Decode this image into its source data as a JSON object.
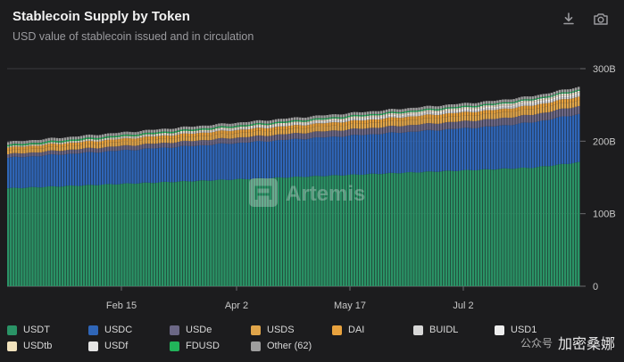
{
  "header": {
    "title": "Stablecoin Supply by Token",
    "subtitle": "USD value of stablecoin issued and in circulation"
  },
  "toolbar": {
    "download_icon": "download-icon",
    "snapshot_icon": "camera-icon"
  },
  "watermark": {
    "logo_text": "Artemis",
    "wechat_text": "公众号",
    "account_text": "加密桑娜"
  },
  "chart_data": {
    "type": "bar",
    "stacked": true,
    "x_ticks": [
      "Feb 15",
      "Apr 2",
      "May 17",
      "Jul 2"
    ],
    "y_ticks": [
      "0",
      "100B",
      "200B",
      "300B"
    ],
    "ylim": [
      0,
      300
    ],
    "grid": true,
    "legend_position": "bottom",
    "series": [
      {
        "name": "USDT",
        "color": "#2a9366",
        "start": 135,
        "end": 166
      },
      {
        "name": "USDC",
        "color": "#2f66b8",
        "start": 42,
        "end": 62
      },
      {
        "name": "USDe",
        "color": "#6b6785",
        "start": 5,
        "end": 11
      },
      {
        "name": "USDS",
        "color": "#e0a54a",
        "start": 5,
        "end": 8
      },
      {
        "name": "DAI",
        "color": "#e8a23e",
        "start": 4,
        "end": 5
      },
      {
        "name": "BUIDL",
        "color": "#d7d7d7",
        "start": 0.5,
        "end": 2.5
      },
      {
        "name": "USD1",
        "color": "#ededed",
        "start": 0,
        "end": 2.5
      },
      {
        "name": "USDtb",
        "color": "#f1e2bd",
        "start": 1,
        "end": 1.5
      },
      {
        "name": "USDf",
        "color": "#e4e4e4",
        "start": 0.2,
        "end": 1.5
      },
      {
        "name": "FDUSD",
        "color": "#22b45a",
        "start": 2,
        "end": 1.5
      },
      {
        "name": "Other (62)",
        "color": "#9e9e9e",
        "start": 4,
        "end": 4
      }
    ]
  }
}
